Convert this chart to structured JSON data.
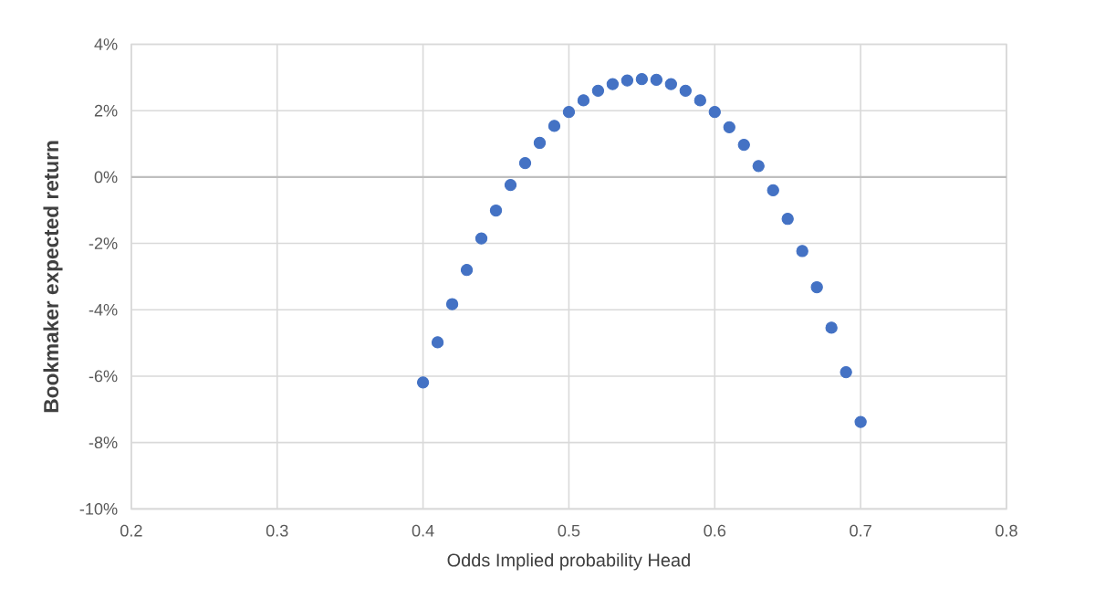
{
  "chart_data": {
    "type": "scatter",
    "xlabel": "Odds Implied probability Head",
    "ylabel": "Bookmaker expected return",
    "x": [
      0.4,
      0.41,
      0.42,
      0.43,
      0.44,
      0.45,
      0.46,
      0.47,
      0.48,
      0.49,
      0.5,
      0.51,
      0.52,
      0.53,
      0.54,
      0.55,
      0.56,
      0.57,
      0.58,
      0.59,
      0.6,
      0.61,
      0.62,
      0.63,
      0.64,
      0.65,
      0.66,
      0.67,
      0.68,
      0.69,
      0.7
    ],
    "values": [
      -6.19,
      -4.98,
      -3.83,
      -2.8,
      -1.85,
      -1.01,
      -0.24,
      0.42,
      1.03,
      1.54,
      1.96,
      2.31,
      2.6,
      2.8,
      2.91,
      2.95,
      2.93,
      2.8,
      2.6,
      2.31,
      1.96,
      1.5,
      0.97,
      0.33,
      -0.4,
      -1.26,
      -2.23,
      -3.32,
      -4.54,
      -5.88,
      -7.38
    ],
    "color": "#4472c4",
    "xlim": [
      0.2,
      0.8
    ],
    "ylim": [
      -10,
      4
    ],
    "xticks": [
      0.2,
      0.3,
      0.4,
      0.5,
      0.6,
      0.7,
      0.8
    ],
    "yticks": [
      {
        "value": -10,
        "label": "-10%"
      },
      {
        "value": -8,
        "label": "-8%"
      },
      {
        "value": -6,
        "label": "-6%"
      },
      {
        "value": -4,
        "label": "-4%"
      },
      {
        "value": -2,
        "label": "-2%"
      },
      {
        "value": 0,
        "label": "0%"
      },
      {
        "value": 2,
        "label": "2%"
      },
      {
        "value": 4,
        "label": "4%"
      }
    ],
    "grid": true,
    "ref_lines": [
      {
        "axis": "y",
        "value": 0,
        "color": "#bfbfbf"
      }
    ]
  }
}
